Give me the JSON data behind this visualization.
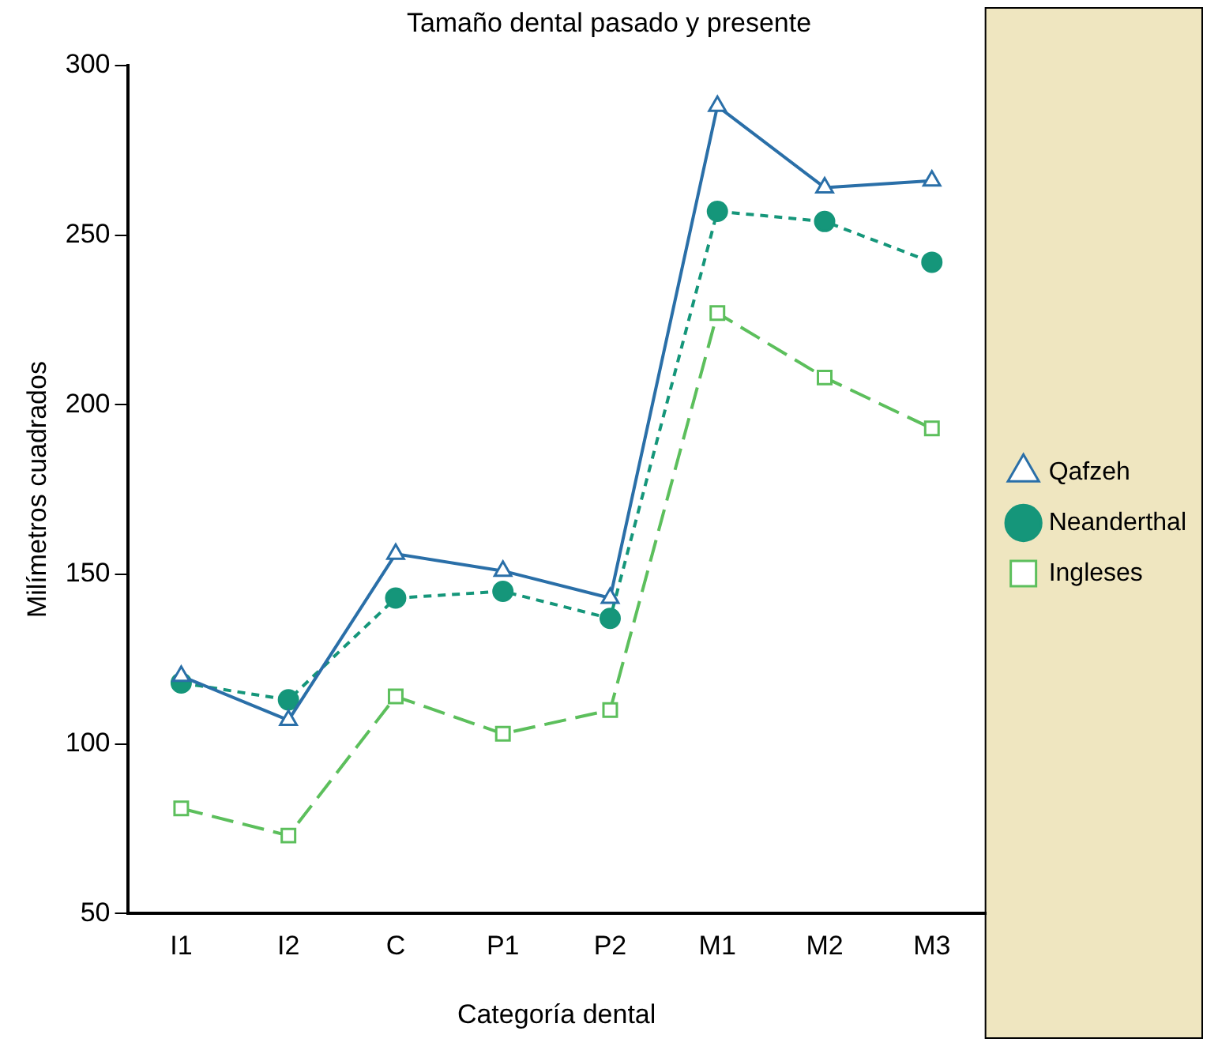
{
  "chart_data": {
    "type": "line",
    "title": "Tamaño dental pasado y presente",
    "xlabel": "Categoría dental",
    "ylabel": "Milímetros cuadrados",
    "categories": [
      "I1",
      "I2",
      "C",
      "P1",
      "P2",
      "M1",
      "M2",
      "M3"
    ],
    "series": [
      {
        "name": "Qafzeh",
        "color": "#2a6fa8",
        "marker": "triangle",
        "line_style": "solid",
        "values": [
          120,
          107,
          156,
          151,
          143,
          288,
          264,
          266
        ]
      },
      {
        "name": "Neanderthal",
        "color": "#15967a",
        "marker": "circle",
        "line_style": "dotted",
        "values": [
          118,
          113,
          143,
          145,
          137,
          257,
          254,
          242
        ]
      },
      {
        "name": "Ingleses",
        "color": "#5cbf5c",
        "marker": "square",
        "line_style": "dashed",
        "values": [
          81,
          73,
          114,
          103,
          110,
          227,
          208,
          193
        ]
      }
    ],
    "ylim": [
      50,
      300
    ],
    "yticks": [
      50,
      100,
      150,
      200,
      250,
      300
    ],
    "grid": false,
    "legend": "right"
  }
}
